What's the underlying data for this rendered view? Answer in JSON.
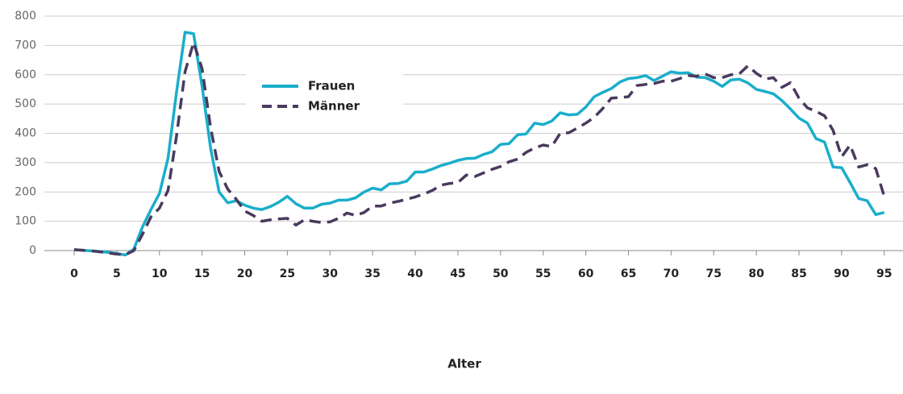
{
  "chart_data": {
    "type": "line",
    "xlabel": "Alter",
    "x": [
      0,
      1,
      2,
      3,
      4,
      5,
      6,
      7,
      8,
      9,
      10,
      11,
      12,
      13,
      14,
      15,
      16,
      17,
      18,
      19,
      20,
      21,
      22,
      23,
      24,
      25,
      26,
      27,
      28,
      29,
      30,
      31,
      32,
      33,
      34,
      35,
      36,
      37,
      38,
      39,
      40,
      41,
      42,
      43,
      44,
      45,
      46,
      47,
      48,
      49,
      50,
      51,
      52,
      53,
      54,
      55,
      56,
      57,
      58,
      59,
      60,
      61,
      62,
      63,
      64,
      65,
      66,
      67,
      68,
      69,
      70,
      71,
      72,
      73,
      74,
      75,
      76,
      77,
      78,
      79,
      80,
      81,
      82,
      83,
      84,
      85,
      86,
      87,
      88,
      89,
      90,
      91,
      92,
      93,
      94,
      95
    ],
    "series": [
      {
        "name": "Frauen",
        "color": "#1aaecb",
        "dash": false,
        "values": [
          3,
          1,
          -1,
          -3,
          -6,
          -10,
          -15,
          5,
          80,
          140,
          195,
          315,
          540,
          745,
          740,
          560,
          350,
          200,
          163,
          170,
          155,
          145,
          140,
          150,
          165,
          185,
          160,
          145,
          145,
          158,
          162,
          172,
          172,
          180,
          200,
          213,
          207,
          228,
          229,
          237,
          268,
          268,
          278,
          290,
          298,
          308,
          314,
          315,
          328,
          337,
          362,
          365,
          395,
          398,
          435,
          430,
          442,
          470,
          463,
          465,
          490,
          525,
          540,
          553,
          575,
          587,
          590,
          597,
          580,
          595,
          610,
          605,
          607,
          592,
          590,
          578,
          560,
          582,
          585,
          572,
          550,
          543,
          535,
          512,
          483,
          452,
          435,
          382,
          370,
          285,
          283,
          232,
          178,
          170,
          123,
          130
        ]
      },
      {
        "name": "Männer",
        "color": "#4a3a5e",
        "dash": true,
        "values": [
          3,
          1,
          -1,
          -4,
          -8,
          -12,
          -14,
          0,
          55,
          115,
          145,
          205,
          390,
          610,
          710,
          620,
          420,
          270,
          210,
          175,
          135,
          120,
          100,
          105,
          108,
          110,
          87,
          105,
          100,
          96,
          98,
          110,
          128,
          120,
          130,
          152,
          152,
          162,
          168,
          175,
          183,
          193,
          205,
          223,
          229,
          232,
          258,
          253,
          265,
          277,
          287,
          303,
          312,
          335,
          350,
          360,
          355,
          400,
          402,
          418,
          435,
          455,
          485,
          520,
          522,
          525,
          563,
          567,
          570,
          578,
          578,
          587,
          597,
          595,
          603,
          590,
          590,
          600,
          603,
          630,
          605,
          585,
          590,
          557,
          573,
          520,
          487,
          475,
          460,
          410,
          320,
          360,
          285,
          293,
          280,
          185
        ]
      }
    ],
    "xlim": [
      -3.5,
      97.2
    ],
    "xticks": [
      0,
      5,
      10,
      15,
      20,
      25,
      30,
      35,
      40,
      45,
      50,
      55,
      60,
      65,
      70,
      75,
      80,
      85,
      90,
      95
    ],
    "ylim": [
      0,
      800
    ],
    "yticks": [
      0,
      100,
      200,
      300,
      400,
      500,
      600,
      700,
      800
    ],
    "grid": true
  }
}
